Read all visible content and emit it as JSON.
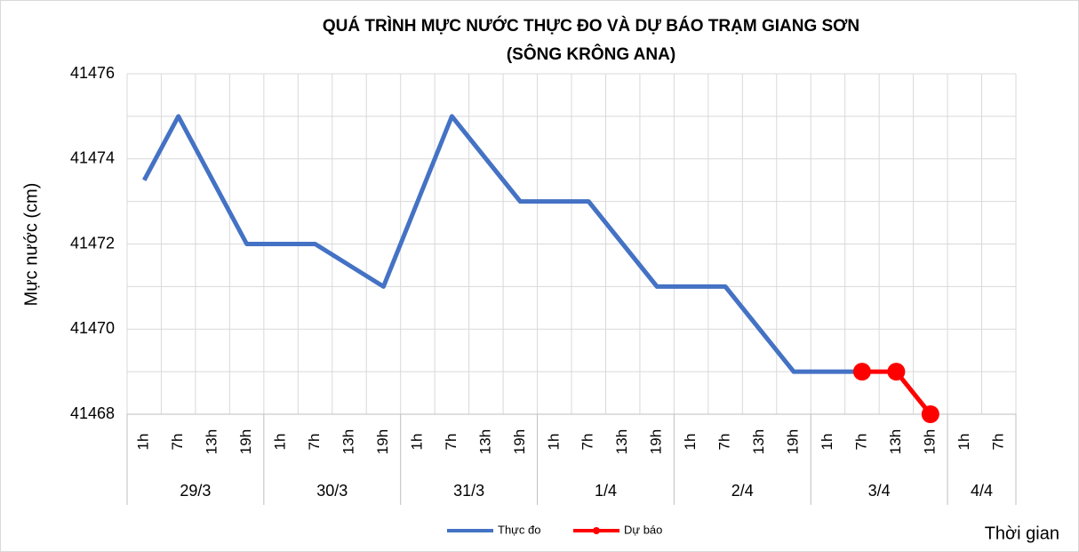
{
  "chart_data": {
    "type": "line",
    "title": "QUÁ TRÌNH MỰC NƯỚC THỰC ĐO VÀ DỰ BÁO TRẠM GIANG SƠN",
    "subtitle": "(SÔNG KRÔNG ANA)",
    "y_label": "Mực nước (cm)",
    "x_label": "Thời gian",
    "groups": [
      {
        "label": "29/3",
        "categories": [
          "1h",
          "7h",
          "13h",
          "19h"
        ]
      },
      {
        "label": "30/3",
        "categories": [
          "1h",
          "7h",
          "13h",
          "19h"
        ]
      },
      {
        "label": "31/3",
        "categories": [
          "1h",
          "7h",
          "13h",
          "19h"
        ]
      },
      {
        "label": "1/4",
        "categories": [
          "1h",
          "7h",
          "13h",
          "19h"
        ]
      },
      {
        "label": "2/4",
        "categories": [
          "1h",
          "7h",
          "13h",
          "19h"
        ]
      },
      {
        "label": "3/4",
        "categories": [
          "1h",
          "7h",
          "13h",
          "19h"
        ]
      },
      {
        "label": "4/4",
        "categories": [
          "1h",
          "7h"
        ]
      }
    ],
    "series": [
      {
        "name": "Thực đo",
        "color": "#4472c4",
        "values": [
          41473.5,
          41475,
          41473.5,
          41472,
          41472,
          41472,
          41471.5,
          41471,
          41473,
          41475,
          41474,
          41473,
          41473,
          41473,
          41472,
          41471,
          41471,
          41471,
          41470,
          41469,
          41469,
          41469,
          null,
          null,
          null,
          null
        ]
      },
      {
        "name": "Dự báo",
        "color": "#ff0000",
        "markers": true,
        "values": [
          null,
          null,
          null,
          null,
          null,
          null,
          null,
          null,
          null,
          null,
          null,
          null,
          null,
          null,
          null,
          null,
          null,
          null,
          null,
          null,
          null,
          41469,
          41469,
          41468,
          null,
          null
        ]
      }
    ],
    "ylim": [
      41468,
      41476
    ],
    "yticks": [
      41468,
      41470,
      41472,
      41474,
      41476
    ],
    "grid": true,
    "legend": "bottom"
  }
}
